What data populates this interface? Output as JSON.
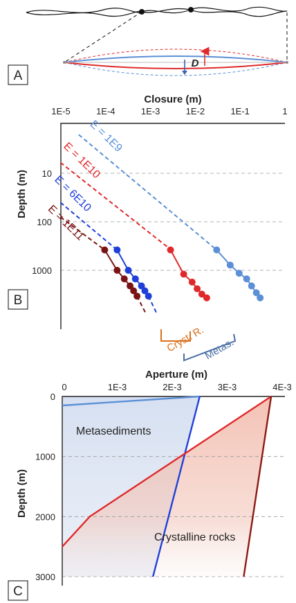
{
  "panels": {
    "a": "A",
    "b": "B",
    "c": "C"
  },
  "panel_a": {
    "aperture_symbol": "D"
  },
  "colors": {
    "light_blue": "#5b8fd6",
    "blue": "#1f3fd8",
    "red": "#e0292b",
    "dark_red": "#7a1414",
    "orange": "#d9701c",
    "slate": "#4a6fa5"
  },
  "chart_data": [
    {
      "type": "line",
      "xlabel": "Closure (m)",
      "ylabel": "Depth (m)",
      "x_scale": "log",
      "y_scale": "log",
      "x_ticks": [
        "1E-5",
        "1E-4",
        "1E-3",
        "1E-2",
        "1E-1",
        "1"
      ],
      "y_ticks": [
        "10",
        "100",
        "1000"
      ],
      "series": [
        {
          "name": "E = 1E9",
          "color": "#5b8fd6",
          "style": "dashed",
          "x": [
            2.5e-05,
            0.03
          ],
          "y": [
            1.6,
            380
          ]
        },
        {
          "name": "E = 1E10",
          "color": "#e0292b",
          "style": "dashed",
          "x": [
            9.8e-06,
            0.0028
          ],
          "y": [
            6,
            370
          ]
        },
        {
          "name": "E = 6E10",
          "color": "#1f3fd8",
          "style": "dashed",
          "x": [
            9.8e-06,
            0.00018
          ],
          "y": [
            40,
            380
          ]
        },
        {
          "name": "E = 1E11",
          "color": "#7a1414",
          "style": "dashed",
          "x": [
            9.8e-06,
            9.5e-05
          ],
          "y": [
            80,
            380
          ]
        },
        {
          "name": "Metasediments (markers)",
          "color": "#5b8fd6",
          "style": "solid-markers",
          "x": [
            0.03,
            0.06,
            0.095,
            0.14,
            0.18,
            0.23,
            0.28
          ],
          "y": [
            380,
            780,
            1150,
            1500,
            2100,
            2900,
            3700
          ]
        },
        {
          "name": "Crystalline rocks (markers)",
          "color": "#e0292b",
          "style": "solid-markers",
          "x": [
            0.0028,
            0.0055,
            0.0085,
            0.011,
            0.014,
            0.018
          ],
          "y": [
            380,
            1200,
            1750,
            2400,
            3100,
            3700
          ]
        },
        {
          "name": "E = 6E10 (markers)",
          "color": "#1f3fd8",
          "style": "solid-markers",
          "x": [
            0.00018,
            0.00032,
            0.00046,
            0.00063,
            0.00075,
            0.0009
          ],
          "y": [
            380,
            1000,
            1500,
            2100,
            2650,
            3400
          ]
        },
        {
          "name": "E = 1E11 (markers)",
          "color": "#7a1414",
          "style": "solid-markers",
          "x": [
            9.5e-05,
            0.00018,
            0.00026,
            0.00035,
            0.00042,
            0.0005
          ],
          "y": [
            380,
            1000,
            1500,
            2100,
            2650,
            3400
          ]
        },
        {
          "name": "E = 6E10 (tail)",
          "color": "#1f3fd8",
          "style": "dashed",
          "x": [
            0.0009,
            0.0014
          ],
          "y": [
            3400,
            8000
          ]
        },
        {
          "name": "E = 1E11 (tail)",
          "color": "#7a1414",
          "style": "dashed",
          "x": [
            0.0005,
            0.0008
          ],
          "y": [
            3400,
            8000
          ]
        }
      ],
      "brackets": [
        {
          "label": "Cryst. R.",
          "color": "#d9701c"
        },
        {
          "label": "Metas.",
          "color": "#4a6fa5"
        }
      ],
      "grid": "horizontal-dashed"
    },
    {
      "type": "area",
      "xlabel": "Aperture (m)",
      "ylabel": "Depth (m)",
      "x_ticks": [
        "0",
        "1E-3",
        "2E-3",
        "3E-3",
        "4E-3"
      ],
      "y_ticks": [
        "0",
        "1000",
        "2000",
        "3000"
      ],
      "xlim": [
        0,
        0.004
      ],
      "ylim": [
        0,
        3150
      ],
      "series": [
        {
          "name": "Metasediments",
          "color": "#5b8fd6",
          "min": {
            "x": [
              0.0,
              0.0025
            ],
            "y": [
              150,
              0
            ]
          },
          "max": {
            "x": [
              0.0025,
              0.00165
            ],
            "y": [
              0,
              3000
            ]
          }
        },
        {
          "name": "Crystalline rocks",
          "color": "#e0292b",
          "min": {
            "x": [
              0.0038,
              0.0005,
              0.0
            ],
            "y": [
              0,
              2000,
              2500
            ]
          },
          "max": {
            "x": [
              0.0038,
              0.0033
            ],
            "y": [
              0,
              3000
            ]
          }
        }
      ],
      "annotations": [
        {
          "text": "Metasediments",
          "color": "#4a6fa5"
        },
        {
          "text": "Crystalline rocks",
          "color": "#d9701c"
        }
      ],
      "grid": "horizontal-dashed"
    }
  ]
}
